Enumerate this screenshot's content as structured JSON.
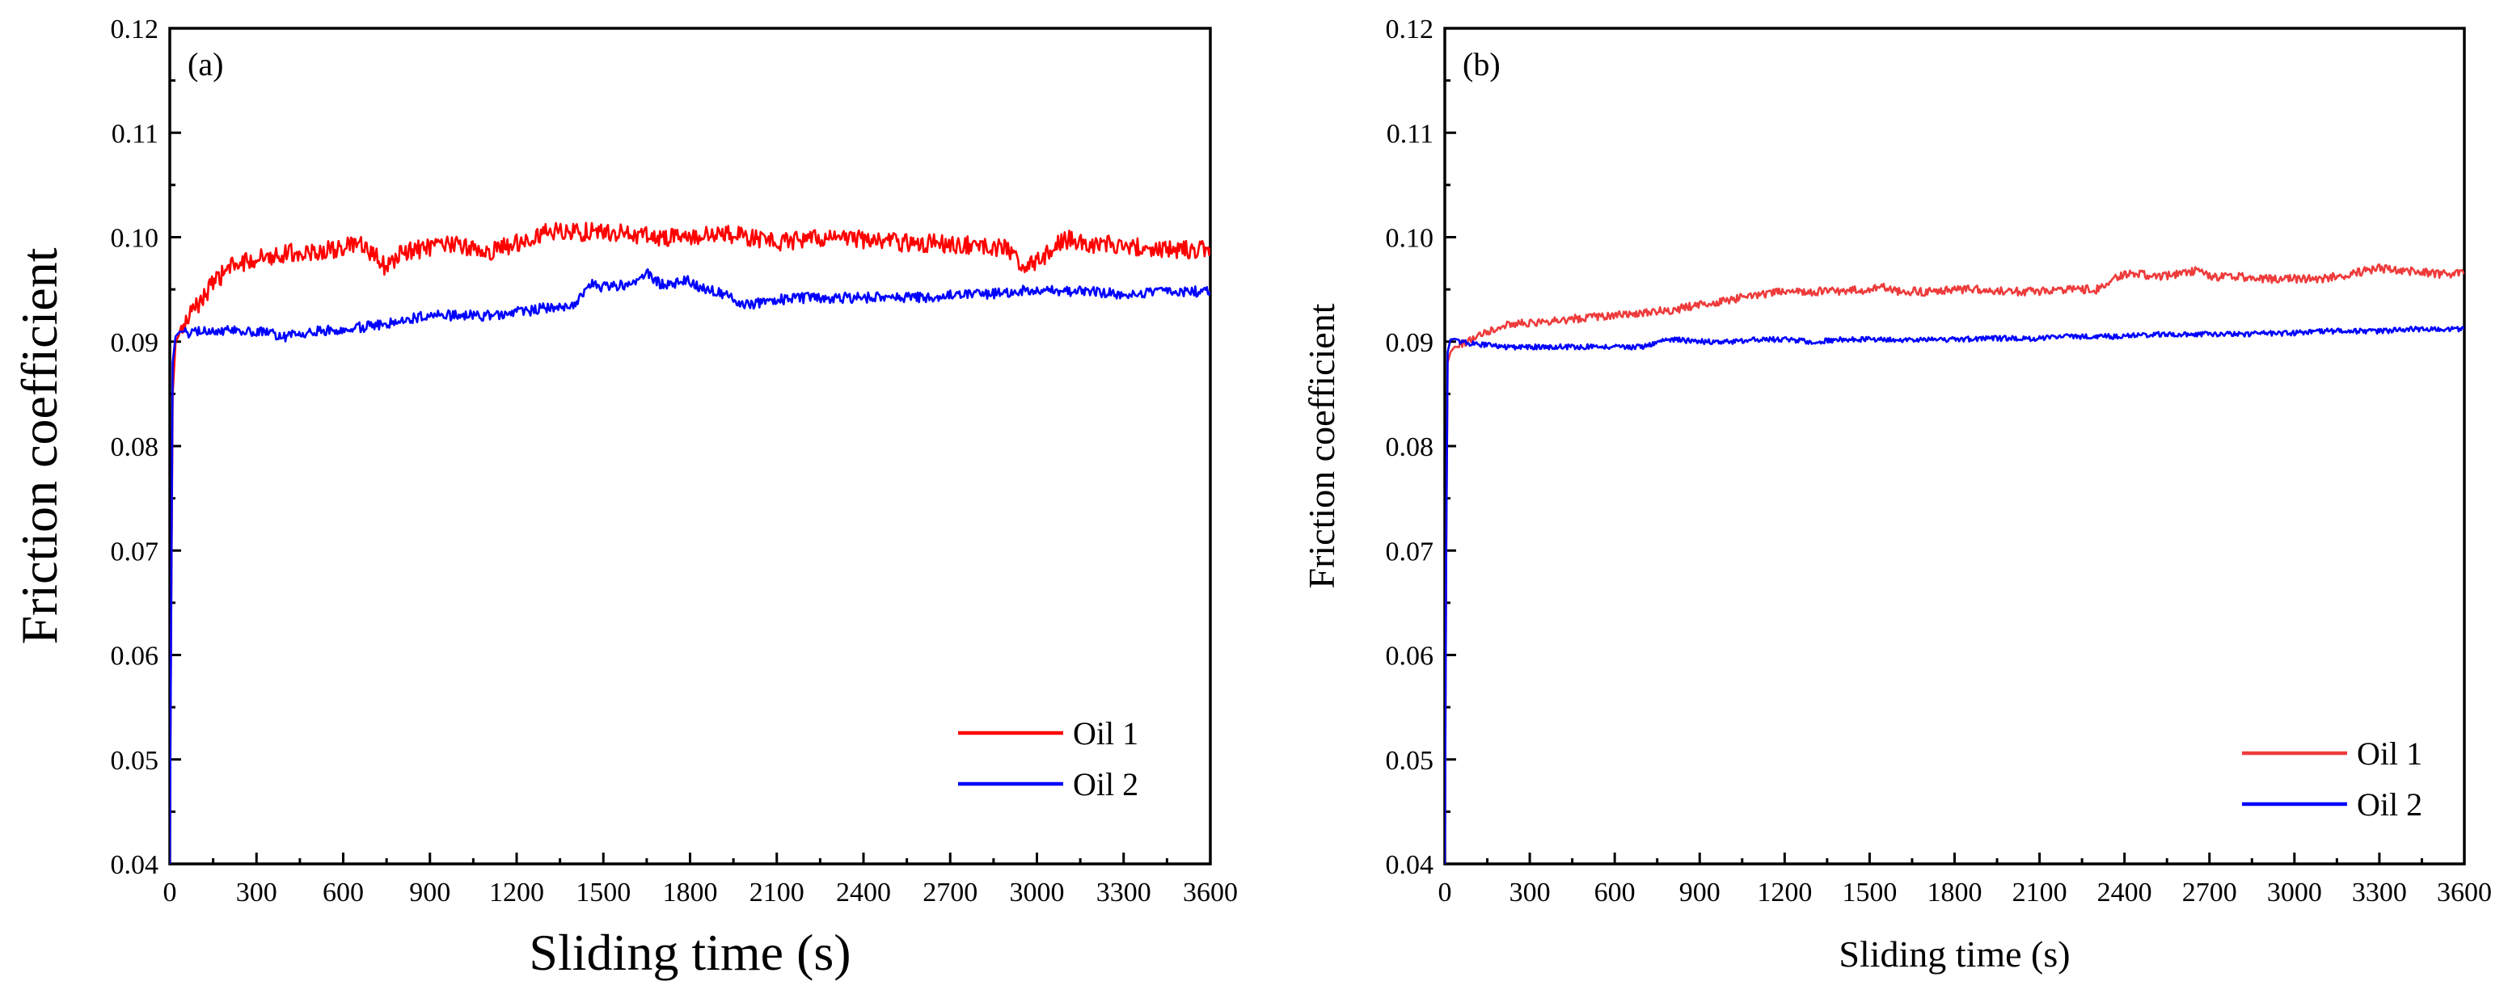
{
  "chart_data": [
    {
      "type": "line",
      "panel_label": "(a)",
      "xlabel": "Sliding time (s)",
      "ylabel": "Friction coefficient",
      "xlim": [
        0,
        3600
      ],
      "ylim": [
        0.04,
        0.12
      ],
      "xticks": [
        "0",
        "300",
        "600",
        "900",
        "1200",
        "1500",
        "1800",
        "2100",
        "2400",
        "2700",
        "3000",
        "3300",
        "3600"
      ],
      "yticks": [
        "0.04",
        "0.05",
        "0.06",
        "0.07",
        "0.08",
        "0.09",
        "0.10",
        "0.11",
        "0.12"
      ],
      "legend_position": "bottom-right",
      "grid": false,
      "series": [
        {
          "name": "Oil 1",
          "color": "#ff0000",
          "x": [
            0,
            5,
            10,
            20,
            40,
            80,
            150,
            200,
            300,
            400,
            500,
            600,
            650,
            700,
            750,
            800,
            900,
            1000,
            1100,
            1200,
            1300,
            1400,
            1500,
            1600,
            1700,
            1800,
            1900,
            2000,
            2100,
            2200,
            2300,
            2400,
            2500,
            2600,
            2700,
            2800,
            2900,
            2950,
            3000,
            3050,
            3100,
            3200,
            3300,
            3400,
            3500,
            3600
          ],
          "y": [
            0.04,
            0.065,
            0.085,
            0.09,
            0.091,
            0.093,
            0.0955,
            0.097,
            0.098,
            0.0985,
            0.0985,
            0.099,
            0.0993,
            0.0985,
            0.097,
            0.0985,
            0.099,
            0.0993,
            0.0985,
            0.0995,
            0.1005,
            0.1005,
            0.1005,
            0.1003,
            0.1,
            0.1,
            0.1003,
            0.1,
            0.0995,
            0.0998,
            0.1,
            0.0998,
            0.0995,
            0.0995,
            0.0993,
            0.0993,
            0.0988,
            0.0975,
            0.0975,
            0.099,
            0.0998,
            0.0993,
            0.0993,
            0.0988,
            0.0988,
            0.099
          ]
        },
        {
          "name": "Oil 2",
          "color": "#0000ff",
          "x": [
            0,
            5,
            10,
            20,
            50,
            100,
            200,
            300,
            400,
            500,
            600,
            700,
            800,
            900,
            1000,
            1100,
            1200,
            1300,
            1400,
            1450,
            1500,
            1600,
            1650,
            1700,
            1800,
            1850,
            1900,
            1950,
            2000,
            2100,
            2200,
            2300,
            2400,
            2500,
            2600,
            2700,
            2800,
            2900,
            3000,
            3100,
            3200,
            3300,
            3400,
            3500,
            3600
          ],
          "y": [
            0.04,
            0.065,
            0.088,
            0.0905,
            0.0908,
            0.091,
            0.091,
            0.091,
            0.0905,
            0.091,
            0.0912,
            0.0915,
            0.092,
            0.0925,
            0.0925,
            0.0925,
            0.0928,
            0.0932,
            0.0935,
            0.0955,
            0.0952,
            0.0955,
            0.0965,
            0.0955,
            0.0958,
            0.095,
            0.0948,
            0.094,
            0.0935,
            0.094,
            0.0942,
            0.0942,
            0.0942,
            0.0943,
            0.0942,
            0.0945,
            0.0945,
            0.0947,
            0.095,
            0.0948,
            0.0948,
            0.0945,
            0.0947,
            0.0948,
            0.0948
          ]
        }
      ]
    },
    {
      "type": "line",
      "panel_label": "(b)",
      "xlabel": "Sliding time (s)",
      "ylabel": "Friction coefficient",
      "xlim": [
        0,
        3600
      ],
      "ylim": [
        0.04,
        0.12
      ],
      "xticks": [
        "0",
        "300",
        "600",
        "900",
        "1200",
        "1500",
        "1800",
        "2100",
        "2400",
        "2700",
        "3000",
        "3300",
        "3600"
      ],
      "yticks": [
        "0.04",
        "0.05",
        "0.06",
        "0.07",
        "0.08",
        "0.09",
        "0.10",
        "0.11",
        "0.12"
      ],
      "legend_position": "bottom-right",
      "grid": false,
      "series": [
        {
          "name": "Oil 1",
          "color": "#ee3b3b",
          "x": [
            0,
            5,
            10,
            20,
            50,
            100,
            200,
            300,
            400,
            500,
            600,
            700,
            800,
            900,
            1000,
            1100,
            1200,
            1300,
            1400,
            1500,
            1550,
            1600,
            1700,
            1800,
            1900,
            2000,
            2100,
            2200,
            2300,
            2400,
            2450,
            2500,
            2600,
            2650,
            2700,
            2800,
            2900,
            3000,
            3100,
            3200,
            3300,
            3400,
            3500,
            3600
          ],
          "y": [
            0.04,
            0.07,
            0.088,
            0.089,
            0.0895,
            0.0905,
            0.0915,
            0.0918,
            0.092,
            0.0923,
            0.0925,
            0.0928,
            0.093,
            0.0935,
            0.094,
            0.0945,
            0.0948,
            0.0948,
            0.0948,
            0.095,
            0.0953,
            0.0948,
            0.0948,
            0.095,
            0.095,
            0.0948,
            0.0948,
            0.095,
            0.095,
            0.0965,
            0.0965,
            0.0962,
            0.0965,
            0.0968,
            0.0962,
            0.0962,
            0.096,
            0.096,
            0.096,
            0.0965,
            0.097,
            0.0968,
            0.0965,
            0.0965
          ]
        },
        {
          "name": "Oil 2",
          "color": "#0000ff",
          "x": [
            0,
            5,
            10,
            20,
            50,
            100,
            200,
            300,
            400,
            500,
            600,
            700,
            750,
            800,
            900,
            1000,
            1100,
            1200,
            1300,
            1400,
            1500,
            1600,
            1700,
            1800,
            1900,
            2000,
            2100,
            2200,
            2300,
            2400,
            2500,
            2600,
            2700,
            2800,
            2900,
            3000,
            3100,
            3200,
            3300,
            3400,
            3500,
            3600
          ],
          "y": [
            0.04,
            0.07,
            0.089,
            0.0902,
            0.09,
            0.0898,
            0.0895,
            0.0895,
            0.0895,
            0.0895,
            0.0895,
            0.0895,
            0.09,
            0.0902,
            0.09,
            0.09,
            0.0902,
            0.0902,
            0.09,
            0.0902,
            0.0902,
            0.0902,
            0.0902,
            0.0902,
            0.0903,
            0.0903,
            0.0903,
            0.0905,
            0.0905,
            0.0905,
            0.0907,
            0.0907,
            0.0907,
            0.0907,
            0.0908,
            0.0908,
            0.091,
            0.091,
            0.091,
            0.0912,
            0.0912,
            0.0912
          ]
        }
      ]
    }
  ]
}
